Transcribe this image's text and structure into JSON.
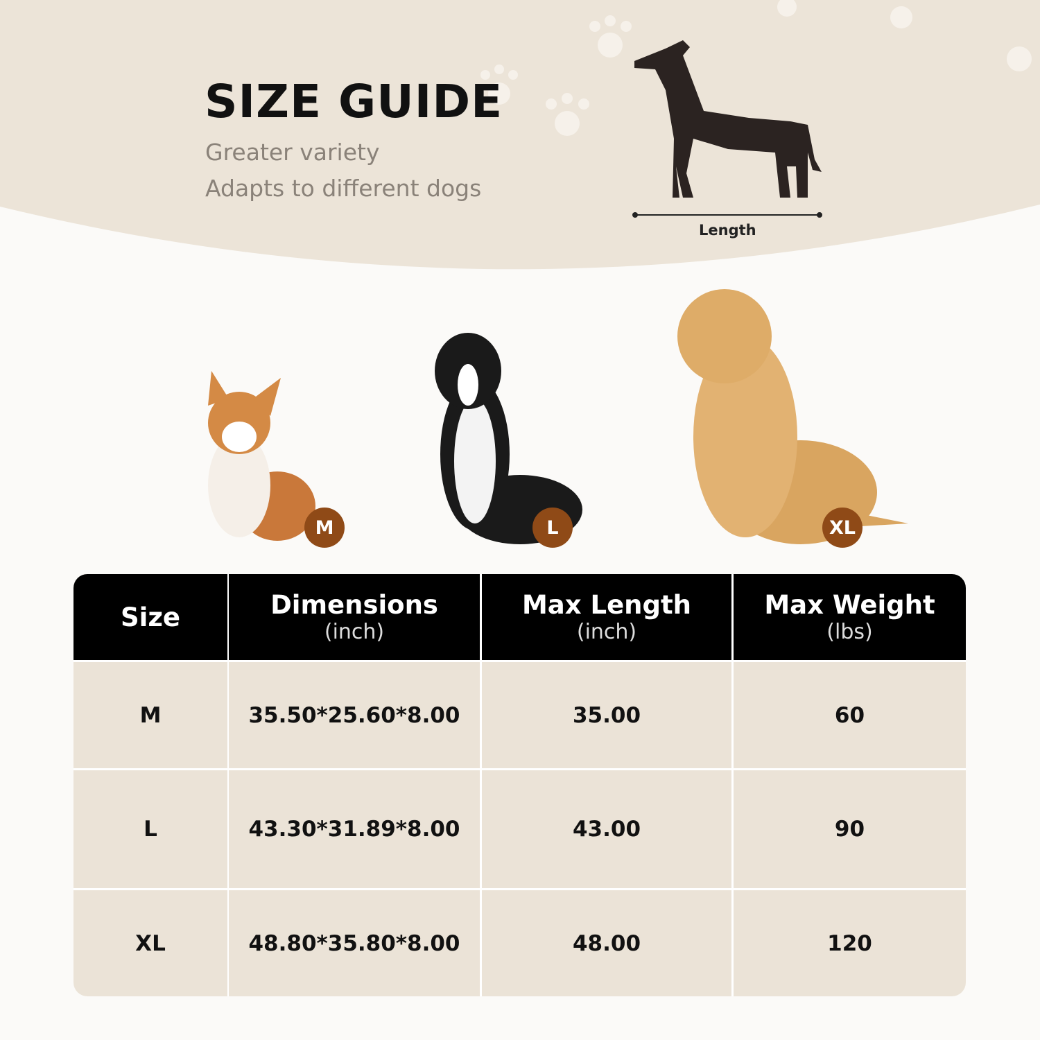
{
  "header": {
    "title": "SIZE GUIDE",
    "subtitle_lines": [
      "Greater variety",
      "Adapts to different dogs"
    ],
    "length_label": "Length"
  },
  "colors": {
    "banner": "#ece4d8",
    "badge": "#8f4a17",
    "table_header": "#000000",
    "table_row": "#ebe3d7"
  },
  "dogs": [
    {
      "breed_icon": "corgi-photo",
      "badge": "M"
    },
    {
      "breed_icon": "border-collie-photo",
      "badge": "L"
    },
    {
      "breed_icon": "golden-retriever-photo",
      "badge": "XL"
    }
  ],
  "table": {
    "columns": [
      {
        "label": "Size",
        "unit": ""
      },
      {
        "label": "Dimensions",
        "unit": "(inch)"
      },
      {
        "label": "Max Length",
        "unit": "(inch)"
      },
      {
        "label": "Max Weight",
        "unit": "(lbs)"
      }
    ],
    "rows": [
      [
        "M",
        "35.50*25.60*8.00",
        "35.00",
        "60"
      ],
      [
        "L",
        "43.30*31.89*8.00",
        "43.00",
        "90"
      ],
      [
        "XL",
        "48.80*35.80*8.00",
        "48.00",
        "120"
      ]
    ]
  }
}
